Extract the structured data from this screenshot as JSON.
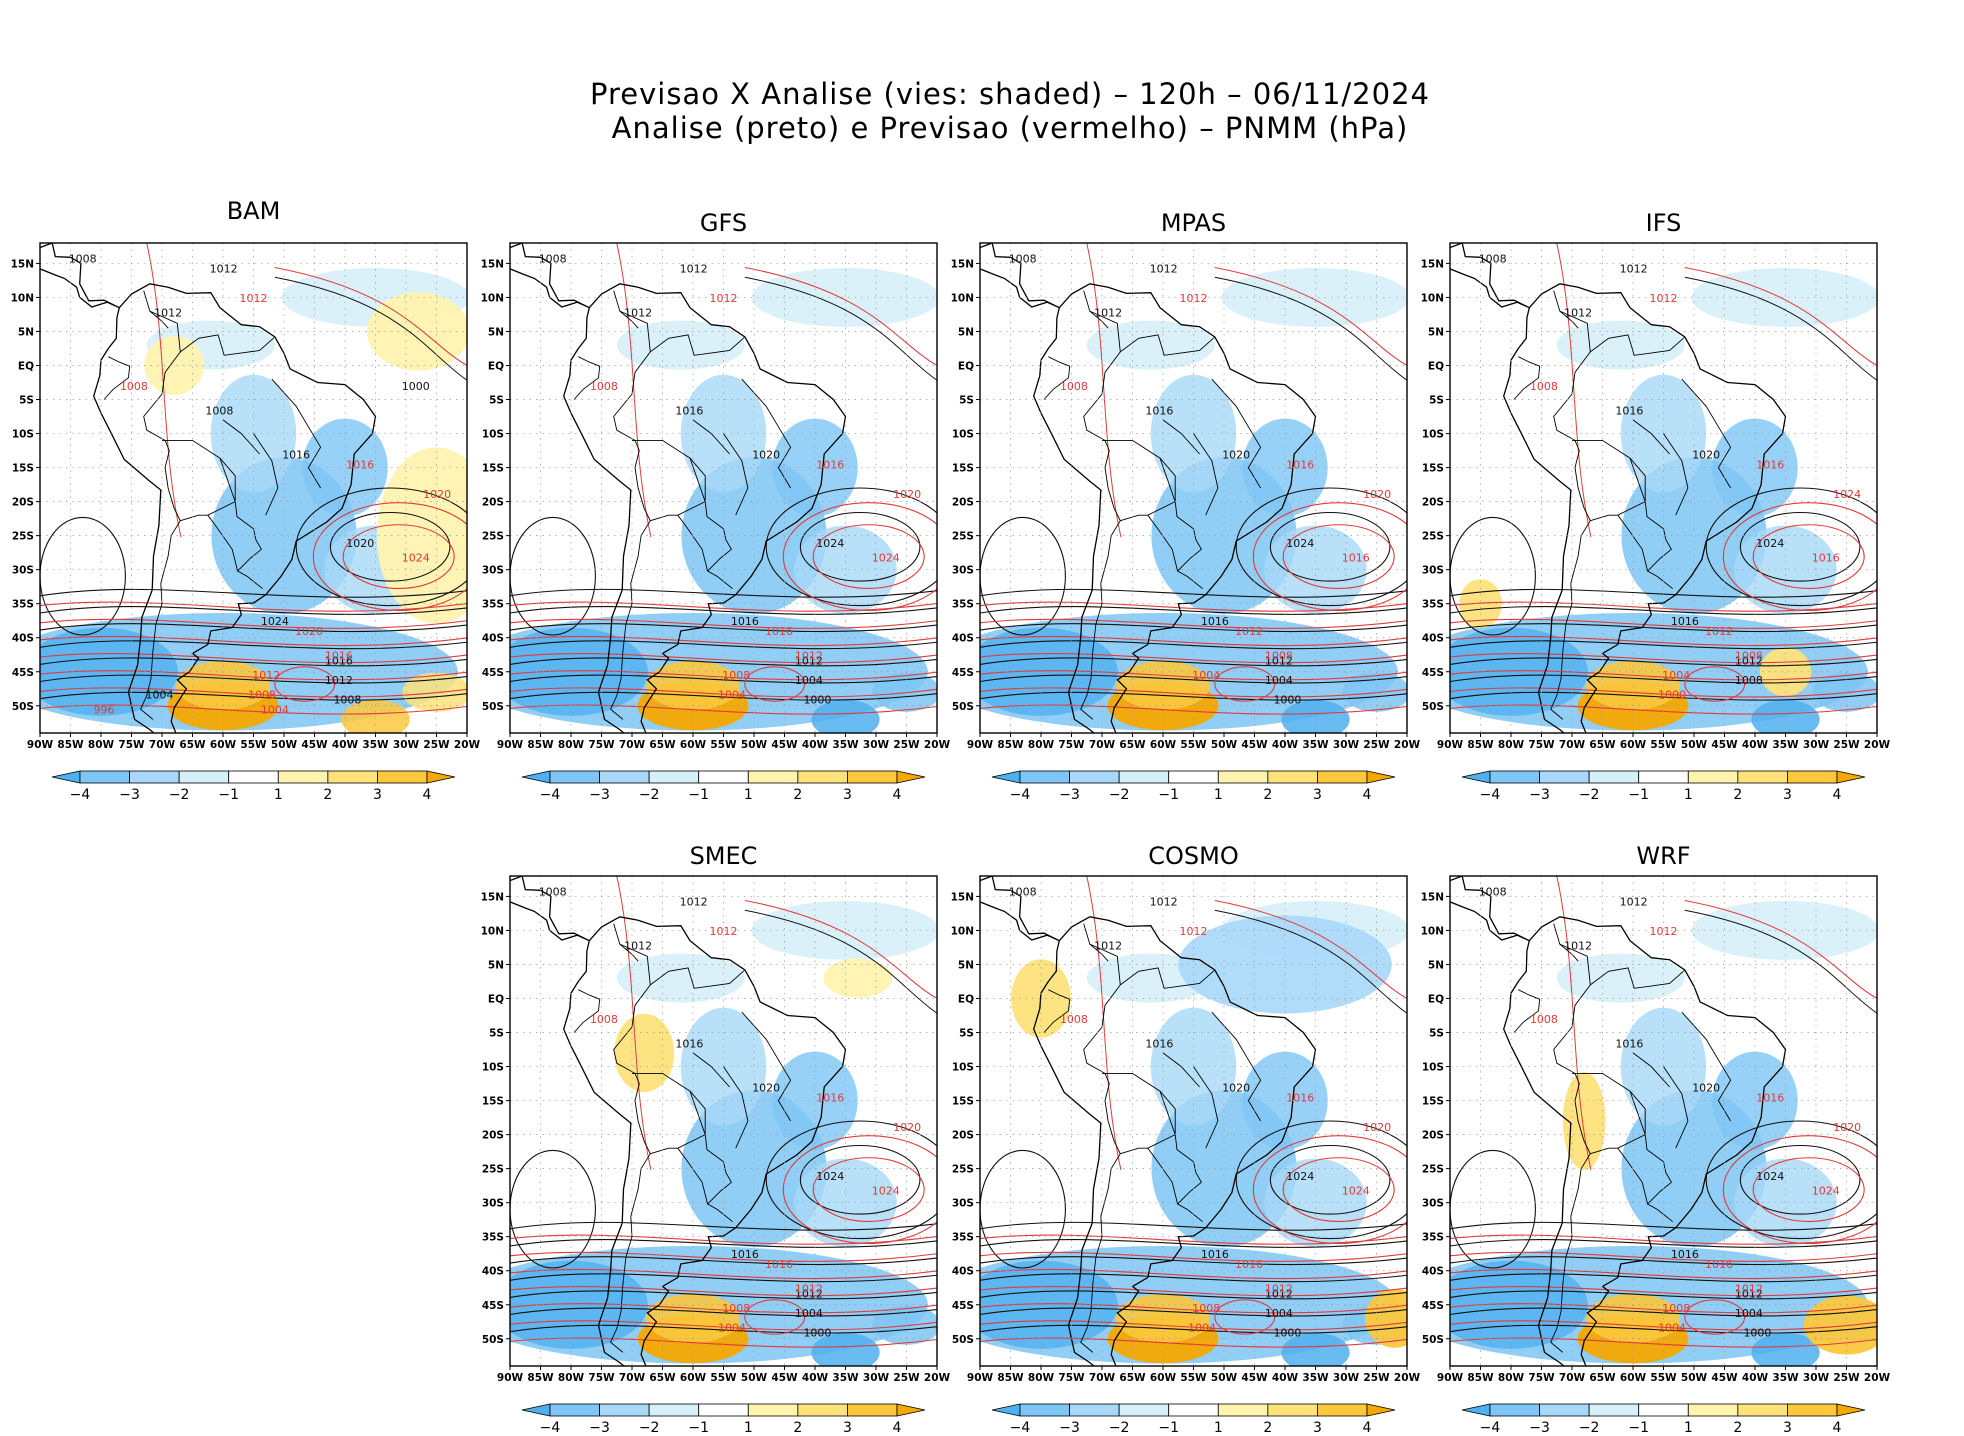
{
  "figure": {
    "title_line1": "Previsao X Analise (vies: shaded) – 120h – 06/11/2024",
    "title_line2": "Analise (preto) e Previsao (vermelho) – PNMM (hPa)"
  },
  "map": {
    "lon_labels": [
      "90W",
      "85W",
      "80W",
      "75W",
      "70W",
      "65W",
      "60W",
      "55W",
      "50W",
      "45W",
      "40W",
      "35W",
      "30W",
      "25W",
      "20W"
    ],
    "lat_labels": [
      "15N",
      "10N",
      "5N",
      "EQ",
      "5S",
      "10S",
      "15S",
      "20S",
      "25S",
      "30S",
      "35S",
      "40S",
      "45S",
      "50S"
    ]
  },
  "colorbar": {
    "labels": [
      "−4",
      "−3",
      "−2",
      "−1",
      "1",
      "2",
      "3",
      "4"
    ],
    "colors": [
      "#4fb0f0",
      "#7ec6f5",
      "#a8d8f8",
      "#d6f0fa",
      "#ffffff",
      "#fff3b0",
      "#fde27a",
      "#fbc83d",
      "#f5a800"
    ]
  },
  "panels": [
    {
      "name": "BAM",
      "labels_black": [
        "1008",
        "1012",
        "1012",
        "1008",
        "1016",
        "1020",
        "1024",
        "1016",
        "1012",
        "1008",
        "1004",
        "1000"
      ],
      "labels_red": [
        "1012",
        "1008",
        "1016",
        "1020",
        "1024",
        "1020",
        "1016",
        "1012",
        "1008",
        "1004",
        "996"
      ]
    },
    {
      "name": "GFS",
      "labels_black": [
        "1008",
        "1012",
        "1012",
        "1016",
        "1020",
        "1024",
        "1016",
        "1012",
        "1004",
        "1000"
      ],
      "labels_red": [
        "1012",
        "1008",
        "1016",
        "1020",
        "1024",
        "1016",
        "1012",
        "1008",
        "1004"
      ]
    },
    {
      "name": "MPAS",
      "labels_black": [
        "1008",
        "1012",
        "1012",
        "1016",
        "1020",
        "1024",
        "1016",
        "1012",
        "1004",
        "1000"
      ],
      "labels_red": [
        "1012",
        "1008",
        "1016",
        "1020",
        "1016",
        "1012",
        "1008",
        "1004"
      ]
    },
    {
      "name": "IFS",
      "labels_black": [
        "1008",
        "1012",
        "1012",
        "1016",
        "1020",
        "1024",
        "1016",
        "1012",
        "1008"
      ],
      "labels_red": [
        "1012",
        "1008",
        "1016",
        "1024",
        "1016",
        "1012",
        "1008",
        "1004",
        "1000"
      ]
    },
    {
      "name": "SMEC",
      "labels_black": [
        "1008",
        "1012",
        "1012",
        "1016",
        "1020",
        "1024",
        "1016",
        "1012",
        "1004",
        "1000"
      ],
      "labels_red": [
        "1012",
        "1008",
        "1016",
        "1020",
        "1024",
        "1016",
        "1012",
        "1008",
        "1004"
      ]
    },
    {
      "name": "COSMO",
      "labels_black": [
        "1008",
        "1012",
        "1012",
        "1016",
        "1020",
        "1024",
        "1016",
        "1012",
        "1004",
        "1000"
      ],
      "labels_red": [
        "1012",
        "1008",
        "1016",
        "1020",
        "1024",
        "1016",
        "1012",
        "1008",
        "1004"
      ]
    },
    {
      "name": "WRF",
      "labels_black": [
        "1008",
        "1012",
        "1012",
        "1016",
        "1020",
        "1024",
        "1016",
        "1012",
        "1004",
        "1000"
      ],
      "labels_red": [
        "1012",
        "1008",
        "1016",
        "1020",
        "1024",
        "1016",
        "1012",
        "1008",
        "1004"
      ]
    }
  ]
}
